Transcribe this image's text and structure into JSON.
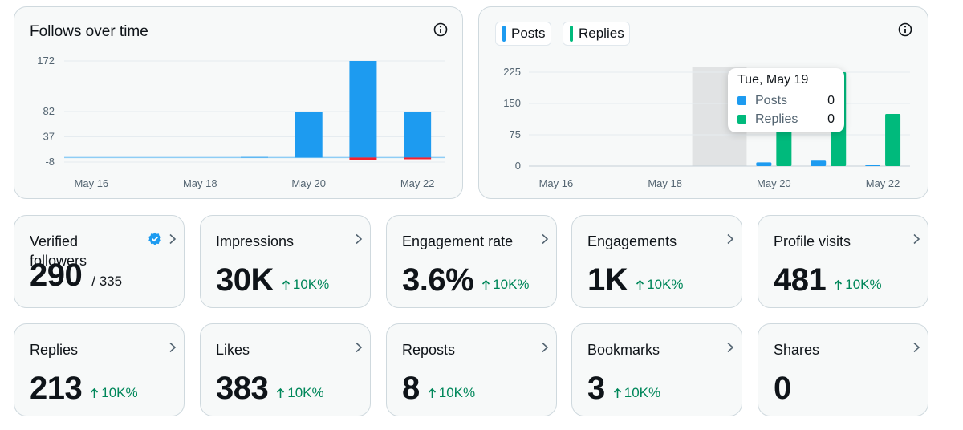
{
  "follows_chart": {
    "title": "Follows over time",
    "y_ticks": [
      "172",
      "82",
      "37",
      "-8"
    ],
    "x_ticks": [
      "May 16",
      "May 18",
      "May 20",
      "May 22"
    ]
  },
  "activity_chart": {
    "legend": [
      {
        "label": "Posts",
        "color": "#1d9bf0"
      },
      {
        "label": "Replies",
        "color": "#00ba7c"
      }
    ],
    "y_ticks": [
      "225",
      "150",
      "75",
      "0"
    ],
    "x_ticks": [
      "May 16",
      "May 18",
      "May 20",
      "May 22"
    ],
    "tooltip": {
      "date": "Tue, May 19",
      "posts_label": "Posts",
      "posts_value": "0",
      "replies_label": "Replies",
      "replies_value": "0"
    }
  },
  "chart_data": [
    {
      "type": "bar",
      "title": "Follows over time",
      "categories": [
        "May 16",
        "May 17",
        "May 18",
        "May 19",
        "May 20",
        "May 21",
        "May 22"
      ],
      "series": [
        {
          "values": [
            0,
            0,
            0,
            1,
            82,
            172,
            82
          ]
        },
        {
          "values": [
            0,
            0,
            0,
            0,
            0,
            -4,
            -3
          ]
        }
      ],
      "colors": [
        "#1d9bf0",
        "#f4212e"
      ],
      "ylim": [
        -8,
        172
      ]
    },
    {
      "type": "bar",
      "categories": [
        "May 16",
        "May 17",
        "May 18",
        "May 19",
        "May 20",
        "May 21",
        "May 22"
      ],
      "series": [
        {
          "name": "Posts",
          "values": [
            0,
            0,
            0,
            0,
            9,
            13,
            2
          ]
        },
        {
          "name": "Replies",
          "values": [
            0,
            0,
            0,
            0,
            100,
            225,
            125
          ]
        }
      ],
      "ylim": [
        0,
        225
      ],
      "highlighted_category": "May 19"
    }
  ],
  "stats_row1": [
    {
      "label": "Verified followers",
      "value": "290",
      "denom": "/ 335",
      "verified": true
    },
    {
      "label": "Impressions",
      "value": "30K",
      "delta": "10K%"
    },
    {
      "label": "Engagement rate",
      "value": "3.6%",
      "delta": "10K%"
    },
    {
      "label": "Engagements",
      "value": "1K",
      "delta": "10K%"
    },
    {
      "label": "Profile visits",
      "value": "481",
      "delta": "10K%"
    }
  ],
  "stats_row2": [
    {
      "label": "Replies",
      "value": "213",
      "delta": "10K%"
    },
    {
      "label": "Likes",
      "value": "383",
      "delta": "10K%"
    },
    {
      "label": "Reposts",
      "value": "8",
      "delta": "10K%"
    },
    {
      "label": "Bookmarks",
      "value": "3",
      "delta": "10K%"
    },
    {
      "label": "Shares",
      "value": "0"
    }
  ]
}
